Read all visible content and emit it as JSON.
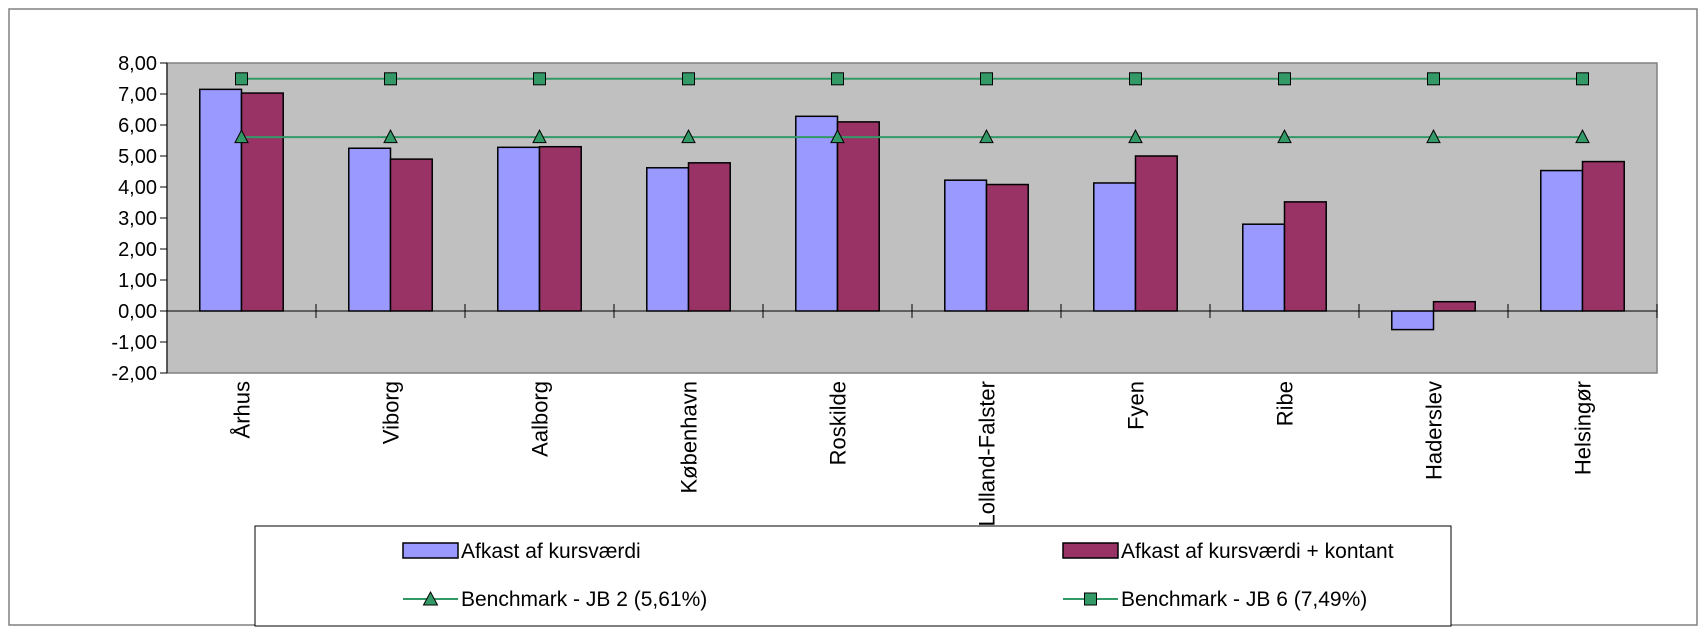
{
  "chart_data": {
    "type": "bar",
    "title": "",
    "xlabel": "",
    "ylabel": "",
    "ylim": [
      -2,
      8
    ],
    "y_ticks": [
      "-2,00",
      "-1,00",
      "0,00",
      "1,00",
      "2,00",
      "3,00",
      "4,00",
      "5,00",
      "6,00",
      "7,00",
      "8,00"
    ],
    "categories": [
      "Århus",
      "Viborg",
      "Aalborg",
      "København",
      "Roskilde",
      "Lolland-Falster",
      "Fyen",
      "Ribe",
      "Haderslev",
      "Helsingør"
    ],
    "series": [
      {
        "name": "Afkast af kursværdi",
        "kind": "bar",
        "color": "#9999FF",
        "values": [
          7.15,
          5.25,
          5.28,
          4.62,
          6.28,
          4.22,
          4.13,
          2.8,
          -0.6,
          4.53
        ]
      },
      {
        "name": "Afkast af kursværdi + kontant",
        "kind": "bar",
        "color": "#993366",
        "values": [
          7.03,
          4.9,
          5.3,
          4.78,
          6.1,
          4.08,
          5.0,
          3.52,
          0.3,
          4.82
        ]
      },
      {
        "name": "Benchmark - JB 2 (5,61%)",
        "kind": "line",
        "marker": "triangle",
        "color": "#339966",
        "values": [
          5.61,
          5.61,
          5.61,
          5.61,
          5.61,
          5.61,
          5.61,
          5.61,
          5.61,
          5.61
        ]
      },
      {
        "name": "Benchmark - JB 6 (7,49%)",
        "kind": "line",
        "marker": "square",
        "color": "#339966",
        "values": [
          7.49,
          7.49,
          7.49,
          7.49,
          7.49,
          7.49,
          7.49,
          7.49,
          7.49,
          7.49
        ]
      }
    ],
    "plot_background": "#C0C0C0",
    "grid": false,
    "legend_position": "bottom"
  }
}
